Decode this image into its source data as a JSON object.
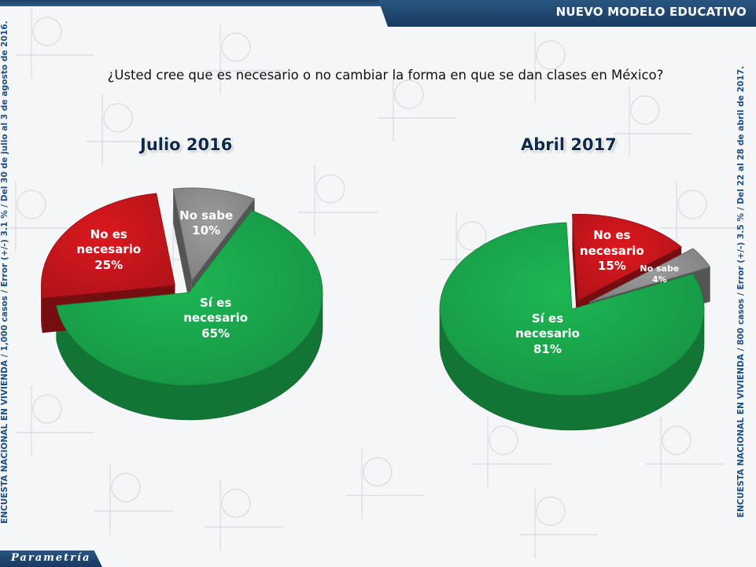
{
  "header": {
    "title": "NUEVO MODELO EDUCATIVO"
  },
  "question": "¿Usted cree que es necesario o no cambiar la forma en que se dan clases en México?",
  "side_notes": {
    "left": "ENCUESTA NACIONAL EN VIVIENDA / 1,000 casos / Error (+/-) 3.1 % / Del 30 de julio al 3 de agosto de 2016.",
    "right": "ENCUESTA NACIONAL EN VIVIENDA / 800 casos / Error (+/-) 3.5 % / Del 22 al 28 de abril de 2017."
  },
  "footer": {
    "brand": "Parametría"
  },
  "colors": {
    "si": "#1aa34a",
    "no": "#c4151c",
    "nosabe": "#8c8c8c",
    "brand": "#1f4e82"
  },
  "chart_data": [
    {
      "type": "pie",
      "title": "Julio 2016",
      "slices": [
        {
          "label": "Sí es necesario",
          "lines": [
            "Sí es",
            "necesario",
            "65%"
          ],
          "value": 65,
          "color": "#1aa34a"
        },
        {
          "label": "No es necesario",
          "lines": [
            "No es",
            "necesario",
            "25%"
          ],
          "value": 25,
          "color": "#c4151c"
        },
        {
          "label": "No sabe",
          "lines": [
            "No sabe",
            "10%"
          ],
          "value": 10,
          "color": "#8c8c8c"
        }
      ]
    },
    {
      "type": "pie",
      "title": "Abril 2017",
      "slices": [
        {
          "label": "Sí es necesario",
          "lines": [
            "Sí es",
            "necesario",
            "81%"
          ],
          "value": 81,
          "color": "#1aa34a"
        },
        {
          "label": "No es necesario",
          "lines": [
            "No es",
            "necesario",
            "15%"
          ],
          "value": 15,
          "color": "#c4151c"
        },
        {
          "label": "No sabe",
          "lines": [
            "No sabe",
            "4%"
          ],
          "value": 4,
          "color": "#8c8c8c"
        }
      ]
    }
  ]
}
